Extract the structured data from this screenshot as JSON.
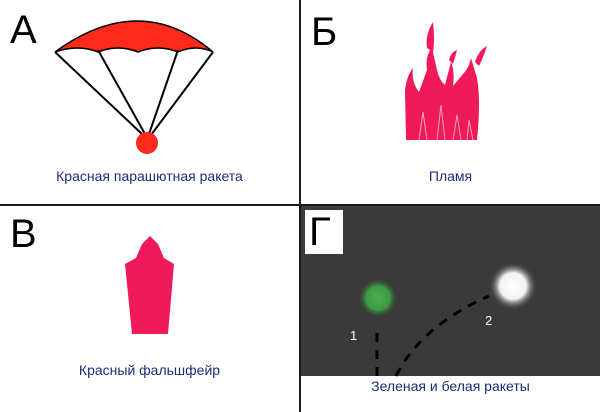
{
  "panels": {
    "a": {
      "letter": "А",
      "caption": "Красная парашютная ракета"
    },
    "b": {
      "letter": "Б",
      "caption": "Пламя"
    },
    "c": {
      "letter": "В",
      "caption": "Красный фальшфейр"
    },
    "d": {
      "letter": "Г",
      "caption": "Зеленая и белая ракеты",
      "label_1": "1",
      "label_2": "2"
    }
  },
  "colors": {
    "red": "#ff2a1a",
    "magenta_red": "#f0195a",
    "caption_blue": "#1d2d7a",
    "dark_bg": "#3a3a3a",
    "green": "#4caf50"
  }
}
